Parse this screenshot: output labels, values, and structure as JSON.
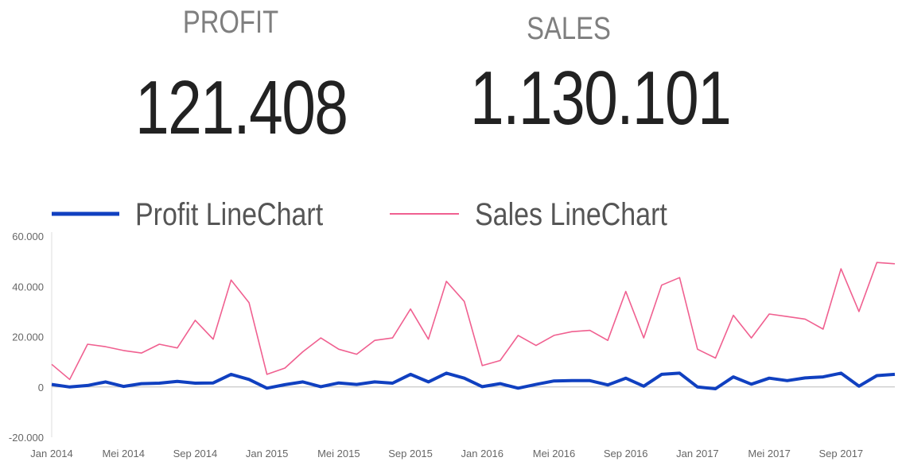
{
  "kpis": {
    "profit": {
      "label": "PROFIT",
      "value": "121.408"
    },
    "sales": {
      "label": "SALES",
      "value": "1.130.101"
    }
  },
  "chart_data": {
    "type": "line",
    "title": "",
    "xlabel": "",
    "ylabel": "",
    "ylim": [
      -20000,
      60000
    ],
    "yticks": [
      -20000,
      0,
      20000,
      40000,
      60000
    ],
    "ytick_labels": [
      "-20.000",
      "0",
      "20.000",
      "40.000",
      "60.000"
    ],
    "xtick_labels": [
      "Jan 2014",
      "Mei 2014",
      "Sep 2014",
      "Jan 2015",
      "Mei 2015",
      "Sep 2015",
      "Jan 2016",
      "Mei 2016",
      "Sep 2016",
      "Jan 2017",
      "Mei 2017",
      "Sep 2017"
    ],
    "legend_position": "top",
    "series": [
      {
        "name": "Profit LineChart",
        "color": "#1040c0",
        "values": [
          1000,
          0,
          600,
          2000,
          200,
          1300,
          1500,
          2200,
          1500,
          1600,
          5000,
          3000,
          -500,
          900,
          2000,
          100,
          1600,
          1000,
          2000,
          1500,
          5000,
          2000,
          5500,
          3500,
          100,
          1300,
          -500,
          1000,
          2400,
          2500,
          2500,
          800,
          3500,
          300,
          5000,
          5500,
          0,
          -700,
          4000,
          1100,
          3500,
          2500,
          3600,
          4000,
          5500,
          300,
          4500,
          5000
        ]
      },
      {
        "name": "Sales LineChart",
        "color": "#f06090",
        "values": [
          9000,
          3000,
          17000,
          16000,
          14500,
          13500,
          17000,
          15500,
          26500,
          19000,
          42500,
          33500,
          5000,
          7500,
          14000,
          19500,
          15000,
          13000,
          18500,
          19500,
          31000,
          19000,
          42000,
          34000,
          8500,
          10500,
          20500,
          16500,
          20500,
          22000,
          22500,
          18500,
          38000,
          19500,
          40500,
          43500,
          15000,
          11500,
          28500,
          19500,
          29000,
          28000,
          27000,
          23000,
          47000,
          30000,
          49500,
          49000
        ]
      }
    ]
  }
}
